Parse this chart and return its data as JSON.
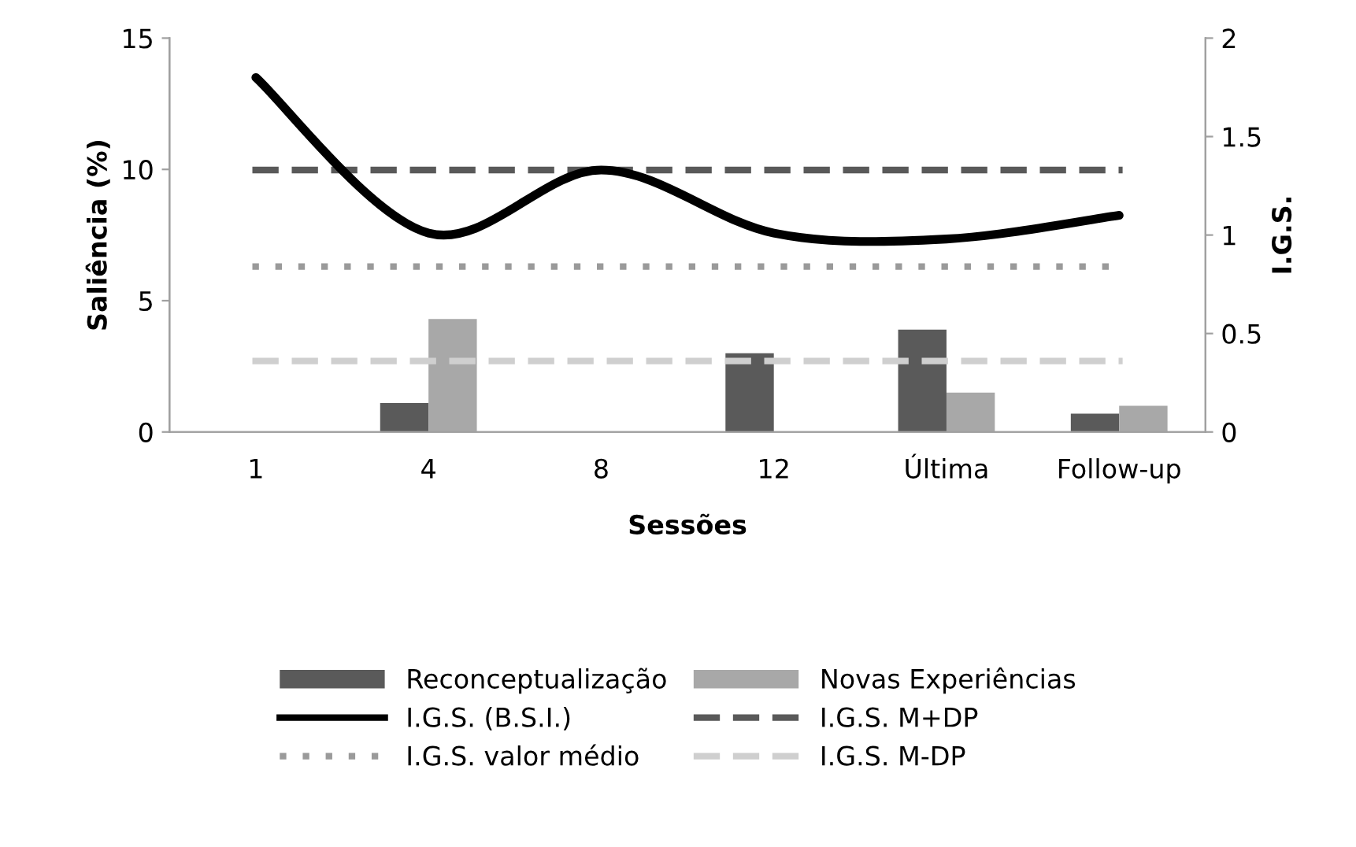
{
  "chart_data": {
    "type": "bar",
    "xlabel": "Sessões",
    "ylabel": "Saliência (%)",
    "y2label": "I.G.S.",
    "categories": [
      "1",
      "4",
      "8",
      "12",
      "Última",
      "Follow-up"
    ],
    "series": [
      {
        "name": "Reconceptualização",
        "color": "#5a5a5a",
        "values": [
          0,
          1.1,
          0,
          3.0,
          3.9,
          0.7
        ]
      },
      {
        "name": "Novas Experiências",
        "color": "#a8a8a8",
        "values": [
          0,
          4.3,
          0,
          0,
          1.5,
          1.0
        ]
      },
      {
        "name": "I.G.S. (B.S.I.)",
        "type": "line",
        "axis": "y2",
        "color": "#000000",
        "line_style": "solid",
        "values": [
          1.8,
          1.01,
          1.33,
          1.01,
          0.98,
          1.1
        ]
      }
    ],
    "ref_lines": [
      {
        "axis": "y2",
        "value": 1.33,
        "label": "I.G.S. M+DP",
        "color": "#595959",
        "line_style": "dashed"
      },
      {
        "axis": "y2",
        "value": 0.84,
        "label": "I.G.S. valor médio",
        "color": "#9a9a9a",
        "line_style": "dotted"
      },
      {
        "axis": "y2",
        "value": 0.36,
        "label": "I.G.S. M-DP",
        "color": "#cfcfcf",
        "line_style": "dashed"
      }
    ],
    "ylim": [
      0,
      15
    ],
    "yticks": [
      0,
      5,
      10,
      15
    ],
    "y2lim": [
      0,
      2
    ],
    "y2ticks": [
      0,
      0.5,
      1,
      1.5,
      2
    ],
    "grid": false,
    "legend": "bottom",
    "marker": "none"
  }
}
